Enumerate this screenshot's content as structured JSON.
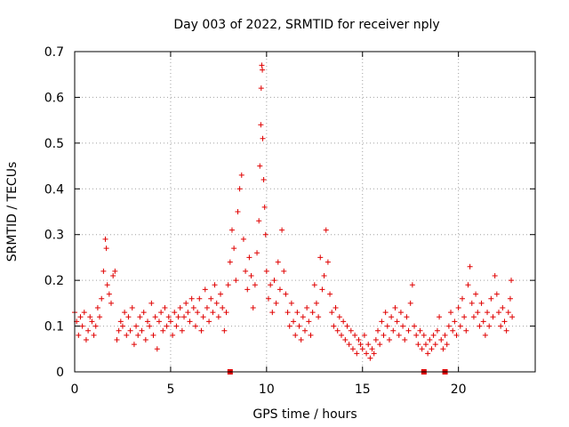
{
  "chart_data": {
    "type": "scatter",
    "title": "Day 003 of 2022, SRMTID for receiver nply",
    "xlabel": "GPS time / hours",
    "ylabel": "SRMTID / TECUs",
    "xlim": [
      0,
      24
    ],
    "ylim": [
      0,
      0.7
    ],
    "xticks": [
      0,
      5,
      10,
      15,
      20
    ],
    "xtick_labels": [
      "0",
      "5",
      "10",
      "15",
      "20"
    ],
    "yticks": [
      0,
      0.1,
      0.2,
      0.3,
      0.4,
      0.5,
      0.6,
      0.7
    ],
    "ytick_labels": [
      "0",
      "0.1",
      "0.2",
      "0.3",
      "0.4",
      "0.5",
      "0.6",
      "0.7"
    ],
    "grid": true,
    "marker": "+",
    "color": "#e00000",
    "gap_markers_x": [
      8.1,
      18.2,
      19.3
    ],
    "series": [
      {
        "name": "SRMTID",
        "points": [
          [
            0.0,
            0.13
          ],
          [
            0.1,
            0.11
          ],
          [
            0.2,
            0.08
          ],
          [
            0.3,
            0.12
          ],
          [
            0.4,
            0.1
          ],
          [
            0.5,
            0.13
          ],
          [
            0.6,
            0.07
          ],
          [
            0.7,
            0.09
          ],
          [
            0.8,
            0.12
          ],
          [
            0.9,
            0.11
          ],
          [
            1.0,
            0.08
          ],
          [
            1.1,
            0.1
          ],
          [
            1.2,
            0.14
          ],
          [
            1.3,
            0.12
          ],
          [
            1.4,
            0.16
          ],
          [
            1.5,
            0.22
          ],
          [
            1.6,
            0.29
          ],
          [
            1.65,
            0.27
          ],
          [
            1.7,
            0.19
          ],
          [
            1.8,
            0.17
          ],
          [
            1.9,
            0.15
          ],
          [
            2.0,
            0.21
          ],
          [
            2.1,
            0.22
          ],
          [
            2.2,
            0.07
          ],
          [
            2.3,
            0.09
          ],
          [
            2.4,
            0.11
          ],
          [
            2.5,
            0.1
          ],
          [
            2.6,
            0.13
          ],
          [
            2.7,
            0.08
          ],
          [
            2.8,
            0.12
          ],
          [
            2.9,
            0.09
          ],
          [
            3.0,
            0.14
          ],
          [
            3.1,
            0.06
          ],
          [
            3.2,
            0.1
          ],
          [
            3.3,
            0.08
          ],
          [
            3.4,
            0.12
          ],
          [
            3.5,
            0.09
          ],
          [
            3.6,
            0.13
          ],
          [
            3.7,
            0.07
          ],
          [
            3.8,
            0.11
          ],
          [
            3.9,
            0.1
          ],
          [
            4.0,
            0.15
          ],
          [
            4.1,
            0.08
          ],
          [
            4.2,
            0.12
          ],
          [
            4.3,
            0.05
          ],
          [
            4.4,
            0.11
          ],
          [
            4.5,
            0.13
          ],
          [
            4.6,
            0.09
          ],
          [
            4.7,
            0.14
          ],
          [
            4.8,
            0.1
          ],
          [
            4.9,
            0.12
          ],
          [
            5.0,
            0.11
          ],
          [
            5.1,
            0.08
          ],
          [
            5.2,
            0.13
          ],
          [
            5.3,
            0.1
          ],
          [
            5.4,
            0.12
          ],
          [
            5.5,
            0.14
          ],
          [
            5.6,
            0.09
          ],
          [
            5.7,
            0.12
          ],
          [
            5.8,
            0.15
          ],
          [
            5.9,
            0.13
          ],
          [
            6.0,
            0.11
          ],
          [
            6.1,
            0.16
          ],
          [
            6.2,
            0.14
          ],
          [
            6.3,
            0.1
          ],
          [
            6.4,
            0.13
          ],
          [
            6.5,
            0.16
          ],
          [
            6.6,
            0.09
          ],
          [
            6.7,
            0.12
          ],
          [
            6.8,
            0.18
          ],
          [
            6.9,
            0.14
          ],
          [
            7.0,
            0.11
          ],
          [
            7.1,
            0.16
          ],
          [
            7.2,
            0.13
          ],
          [
            7.3,
            0.19
          ],
          [
            7.4,
            0.15
          ],
          [
            7.5,
            0.12
          ],
          [
            7.6,
            0.17
          ],
          [
            7.7,
            0.14
          ],
          [
            7.8,
            0.09
          ],
          [
            7.9,
            0.13
          ],
          [
            8.0,
            0.19
          ],
          [
            8.1,
            0.24
          ],
          [
            8.2,
            0.31
          ],
          [
            8.3,
            0.27
          ],
          [
            8.4,
            0.2
          ],
          [
            8.5,
            0.35
          ],
          [
            8.6,
            0.4
          ],
          [
            8.7,
            0.43
          ],
          [
            8.8,
            0.29
          ],
          [
            8.9,
            0.22
          ],
          [
            9.0,
            0.18
          ],
          [
            9.1,
            0.25
          ],
          [
            9.2,
            0.21
          ],
          [
            9.3,
            0.14
          ],
          [
            9.4,
            0.19
          ],
          [
            9.5,
            0.26
          ],
          [
            9.6,
            0.33
          ],
          [
            9.65,
            0.45
          ],
          [
            9.7,
            0.54
          ],
          [
            9.72,
            0.62
          ],
          [
            9.75,
            0.67
          ],
          [
            9.78,
            0.66
          ],
          [
            9.8,
            0.51
          ],
          [
            9.85,
            0.42
          ],
          [
            9.9,
            0.36
          ],
          [
            9.95,
            0.3
          ],
          [
            10.0,
            0.22
          ],
          [
            10.1,
            0.16
          ],
          [
            10.2,
            0.19
          ],
          [
            10.3,
            0.13
          ],
          [
            10.4,
            0.2
          ],
          [
            10.5,
            0.15
          ],
          [
            10.6,
            0.24
          ],
          [
            10.7,
            0.18
          ],
          [
            10.8,
            0.31
          ],
          [
            10.9,
            0.22
          ],
          [
            11.0,
            0.17
          ],
          [
            11.1,
            0.13
          ],
          [
            11.2,
            0.1
          ],
          [
            11.3,
            0.15
          ],
          [
            11.4,
            0.11
          ],
          [
            11.5,
            0.08
          ],
          [
            11.6,
            0.13
          ],
          [
            11.7,
            0.1
          ],
          [
            11.8,
            0.07
          ],
          [
            11.9,
            0.12
          ],
          [
            12.0,
            0.09
          ],
          [
            12.1,
            0.14
          ],
          [
            12.2,
            0.11
          ],
          [
            12.3,
            0.08
          ],
          [
            12.4,
            0.13
          ],
          [
            12.5,
            0.19
          ],
          [
            12.6,
            0.15
          ],
          [
            12.7,
            0.12
          ],
          [
            12.8,
            0.25
          ],
          [
            12.9,
            0.18
          ],
          [
            13.0,
            0.21
          ],
          [
            13.1,
            0.31
          ],
          [
            13.2,
            0.24
          ],
          [
            13.3,
            0.17
          ],
          [
            13.4,
            0.13
          ],
          [
            13.5,
            0.1
          ],
          [
            13.6,
            0.14
          ],
          [
            13.7,
            0.09
          ],
          [
            13.8,
            0.12
          ],
          [
            13.9,
            0.08
          ],
          [
            14.0,
            0.11
          ],
          [
            14.1,
            0.07
          ],
          [
            14.2,
            0.1
          ],
          [
            14.3,
            0.06
          ],
          [
            14.4,
            0.09
          ],
          [
            14.5,
            0.05
          ],
          [
            14.6,
            0.08
          ],
          [
            14.7,
            0.04
          ],
          [
            14.8,
            0.07
          ],
          [
            14.9,
            0.06
          ],
          [
            15.0,
            0.05
          ],
          [
            15.1,
            0.08
          ],
          [
            15.2,
            0.04
          ],
          [
            15.3,
            0.06
          ],
          [
            15.4,
            0.03
          ],
          [
            15.5,
            0.05
          ],
          [
            15.6,
            0.04
          ],
          [
            15.7,
            0.07
          ],
          [
            15.8,
            0.09
          ],
          [
            15.9,
            0.06
          ],
          [
            16.0,
            0.11
          ],
          [
            16.1,
            0.08
          ],
          [
            16.2,
            0.13
          ],
          [
            16.3,
            0.1
          ],
          [
            16.4,
            0.07
          ],
          [
            16.5,
            0.12
          ],
          [
            16.6,
            0.09
          ],
          [
            16.7,
            0.14
          ],
          [
            16.8,
            0.11
          ],
          [
            16.9,
            0.08
          ],
          [
            17.0,
            0.13
          ],
          [
            17.1,
            0.1
          ],
          [
            17.2,
            0.07
          ],
          [
            17.3,
            0.12
          ],
          [
            17.4,
            0.09
          ],
          [
            17.5,
            0.15
          ],
          [
            17.6,
            0.19
          ],
          [
            17.7,
            0.1
          ],
          [
            17.8,
            0.08
          ],
          [
            17.9,
            0.06
          ],
          [
            18.0,
            0.09
          ],
          [
            18.1,
            0.05
          ],
          [
            18.2,
            0.08
          ],
          [
            18.3,
            0.06
          ],
          [
            18.4,
            0.04
          ],
          [
            18.5,
            0.07
          ],
          [
            18.6,
            0.05
          ],
          [
            18.7,
            0.08
          ],
          [
            18.8,
            0.06
          ],
          [
            18.9,
            0.09
          ],
          [
            19.0,
            0.12
          ],
          [
            19.1,
            0.07
          ],
          [
            19.2,
            0.05
          ],
          [
            19.3,
            0.08
          ],
          [
            19.4,
            0.06
          ],
          [
            19.5,
            0.1
          ],
          [
            19.6,
            0.13
          ],
          [
            19.7,
            0.09
          ],
          [
            19.8,
            0.11
          ],
          [
            19.9,
            0.08
          ],
          [
            20.0,
            0.14
          ],
          [
            20.1,
            0.1
          ],
          [
            20.2,
            0.16
          ],
          [
            20.3,
            0.12
          ],
          [
            20.4,
            0.09
          ],
          [
            20.5,
            0.19
          ],
          [
            20.6,
            0.23
          ],
          [
            20.7,
            0.15
          ],
          [
            20.8,
            0.12
          ],
          [
            20.9,
            0.17
          ],
          [
            21.0,
            0.13
          ],
          [
            21.1,
            0.1
          ],
          [
            21.2,
            0.15
          ],
          [
            21.3,
            0.11
          ],
          [
            21.4,
            0.08
          ],
          [
            21.5,
            0.13
          ],
          [
            21.6,
            0.1
          ],
          [
            21.7,
            0.16
          ],
          [
            21.8,
            0.12
          ],
          [
            21.9,
            0.21
          ],
          [
            22.0,
            0.17
          ],
          [
            22.1,
            0.13
          ],
          [
            22.2,
            0.1
          ],
          [
            22.3,
            0.14
          ],
          [
            22.4,
            0.11
          ],
          [
            22.5,
            0.09
          ],
          [
            22.6,
            0.13
          ],
          [
            22.7,
            0.16
          ],
          [
            22.75,
            0.2
          ],
          [
            22.8,
            0.12
          ]
        ]
      }
    ]
  }
}
